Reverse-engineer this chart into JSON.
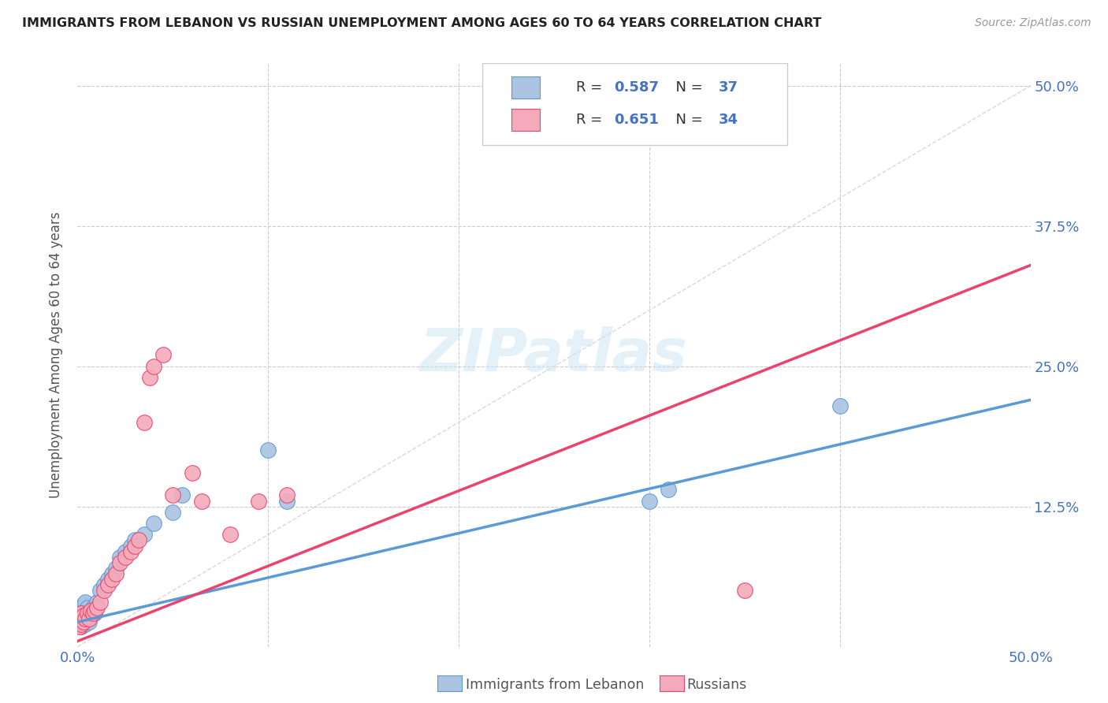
{
  "title": "IMMIGRANTS FROM LEBANON VS RUSSIAN UNEMPLOYMENT AMONG AGES 60 TO 64 YEARS CORRELATION CHART",
  "source": "Source: ZipAtlas.com",
  "ylabel": "Unemployment Among Ages 60 to 64 years",
  "xlim": [
    0.0,
    0.5
  ],
  "ylim": [
    0.0,
    0.52
  ],
  "legend1_R": "0.587",
  "legend1_N": "37",
  "legend2_R": "0.651",
  "legend2_N": "34",
  "color_lebanon": "#aac4e2",
  "color_russia": "#f4aabb",
  "color_line_lebanon": "#5b9bd5",
  "color_line_russia": "#e8446e",
  "color_diag": "#c8c8c8",
  "watermark": "ZIPatlas",
  "lebanon_x": [
    0.001,
    0.001,
    0.002,
    0.002,
    0.002,
    0.003,
    0.003,
    0.003,
    0.004,
    0.004,
    0.004,
    0.005,
    0.005,
    0.006,
    0.006,
    0.007,
    0.008,
    0.009,
    0.01,
    0.012,
    0.014,
    0.016,
    0.018,
    0.02,
    0.022,
    0.025,
    0.028,
    0.03,
    0.035,
    0.04,
    0.05,
    0.055,
    0.1,
    0.11,
    0.3,
    0.31,
    0.4
  ],
  "lebanon_y": [
    0.02,
    0.028,
    0.018,
    0.025,
    0.032,
    0.022,
    0.03,
    0.038,
    0.02,
    0.028,
    0.04,
    0.025,
    0.035,
    0.022,
    0.03,
    0.028,
    0.035,
    0.03,
    0.04,
    0.05,
    0.055,
    0.06,
    0.065,
    0.07,
    0.08,
    0.085,
    0.09,
    0.095,
    0.1,
    0.11,
    0.12,
    0.135,
    0.175,
    0.13,
    0.13,
    0.14,
    0.215
  ],
  "russia_x": [
    0.001,
    0.001,
    0.002,
    0.002,
    0.003,
    0.003,
    0.004,
    0.005,
    0.006,
    0.007,
    0.008,
    0.009,
    0.01,
    0.012,
    0.014,
    0.016,
    0.018,
    0.02,
    0.022,
    0.025,
    0.028,
    0.03,
    0.032,
    0.035,
    0.038,
    0.04,
    0.045,
    0.05,
    0.06,
    0.065,
    0.08,
    0.095,
    0.11,
    0.35
  ],
  "russia_y": [
    0.018,
    0.025,
    0.02,
    0.03,
    0.022,
    0.028,
    0.025,
    0.03,
    0.025,
    0.032,
    0.03,
    0.032,
    0.035,
    0.04,
    0.05,
    0.055,
    0.06,
    0.065,
    0.075,
    0.08,
    0.085,
    0.09,
    0.095,
    0.2,
    0.24,
    0.25,
    0.26,
    0.135,
    0.155,
    0.13,
    0.1,
    0.13,
    0.135,
    0.05
  ],
  "line_lebanon_x0": 0.0,
  "line_lebanon_y0": 0.022,
  "line_lebanon_x1": 0.5,
  "line_lebanon_y1": 0.22,
  "line_russia_x0": 0.0,
  "line_russia_y0": 0.005,
  "line_russia_x1": 0.5,
  "line_russia_y1": 0.34
}
